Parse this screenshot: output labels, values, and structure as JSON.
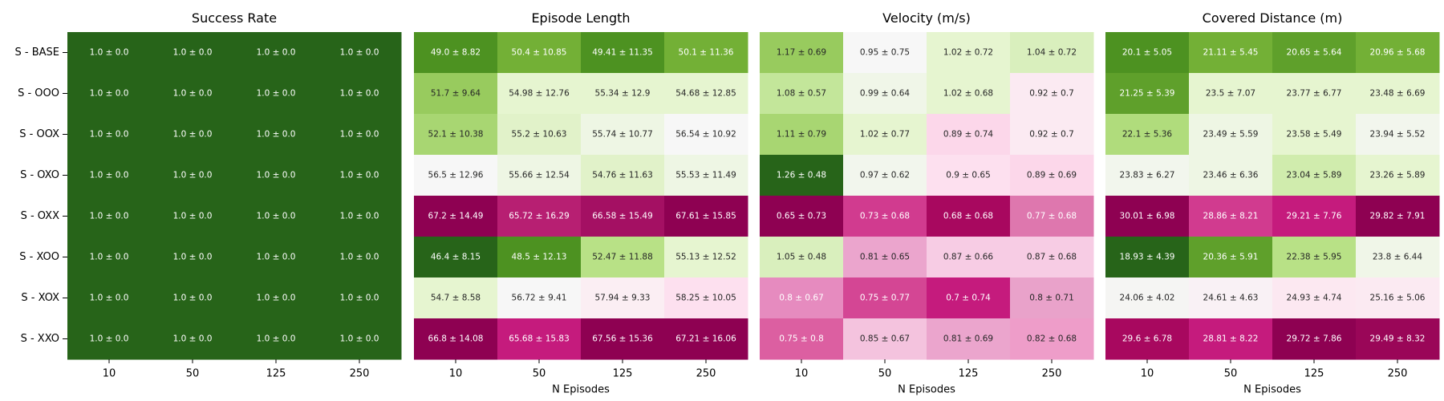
{
  "chart_data": {
    "type": "heatmap",
    "row_labels": [
      "S - BASE",
      "S - OOO",
      "S - OOX",
      "S - OXO",
      "S - OXX",
      "S - XOO",
      "S - XOX",
      "S - XXO"
    ],
    "col_labels": [
      "10",
      "50",
      "125",
      "250"
    ],
    "xlabel": "N Episodes",
    "colormap": "PiYG",
    "panels": [
      {
        "title": "Success Rate",
        "show_xlabel": false,
        "values": [
          [
            "1.0 ± 0.0",
            "1.0 ± 0.0",
            "1.0 ± 0.0",
            "1.0 ± 0.0"
          ],
          [
            "1.0 ± 0.0",
            "1.0 ± 0.0",
            "1.0 ± 0.0",
            "1.0 ± 0.0"
          ],
          [
            "1.0 ± 0.0",
            "1.0 ± 0.0",
            "1.0 ± 0.0",
            "1.0 ± 0.0"
          ],
          [
            "1.0 ± 0.0",
            "1.0 ± 0.0",
            "1.0 ± 0.0",
            "1.0 ± 0.0"
          ],
          [
            "1.0 ± 0.0",
            "1.0 ± 0.0",
            "1.0 ± 0.0",
            "1.0 ± 0.0"
          ],
          [
            "1.0 ± 0.0",
            "1.0 ± 0.0",
            "1.0 ± 0.0",
            "1.0 ± 0.0"
          ],
          [
            "1.0 ± 0.0",
            "1.0 ± 0.0",
            "1.0 ± 0.0",
            "1.0 ± 0.0"
          ],
          [
            "1.0 ± 0.0",
            "1.0 ± 0.0",
            "1.0 ± 0.0",
            "1.0 ± 0.0"
          ]
        ],
        "colors": [
          [
            "#276419",
            "#276419",
            "#276419",
            "#276419"
          ],
          [
            "#276419",
            "#276419",
            "#276419",
            "#276419"
          ],
          [
            "#276419",
            "#276419",
            "#276419",
            "#276419"
          ],
          [
            "#276419",
            "#276419",
            "#276419",
            "#276419"
          ],
          [
            "#276419",
            "#276419",
            "#276419",
            "#276419"
          ],
          [
            "#276419",
            "#276419",
            "#276419",
            "#276419"
          ],
          [
            "#276419",
            "#276419",
            "#276419",
            "#276419"
          ],
          [
            "#276419",
            "#276419",
            "#276419",
            "#276419"
          ]
        ],
        "text_colors": [
          [
            "#ffffff",
            "#ffffff",
            "#ffffff",
            "#ffffff"
          ],
          [
            "#ffffff",
            "#ffffff",
            "#ffffff",
            "#ffffff"
          ],
          [
            "#ffffff",
            "#ffffff",
            "#ffffff",
            "#ffffff"
          ],
          [
            "#ffffff",
            "#ffffff",
            "#ffffff",
            "#ffffff"
          ],
          [
            "#ffffff",
            "#ffffff",
            "#ffffff",
            "#ffffff"
          ],
          [
            "#ffffff",
            "#ffffff",
            "#ffffff",
            "#ffffff"
          ],
          [
            "#ffffff",
            "#ffffff",
            "#ffffff",
            "#ffffff"
          ],
          [
            "#ffffff",
            "#ffffff",
            "#ffffff",
            "#ffffff"
          ]
        ]
      },
      {
        "title": "Episode Length",
        "show_xlabel": true,
        "values": [
          [
            "49.0 ± 8.82",
            "50.4 ± 10.85",
            "49.41 ± 11.35",
            "50.1 ± 11.36"
          ],
          [
            "51.7 ± 9.64",
            "54.98 ± 12.76",
            "55.34 ± 12.9",
            "54.68 ± 12.85"
          ],
          [
            "52.1 ± 10.38",
            "55.2 ± 10.63",
            "55.74 ± 10.77",
            "56.54 ± 10.92"
          ],
          [
            "56.5 ± 12.96",
            "55.66 ± 12.54",
            "54.76 ± 11.63",
            "55.53 ± 11.49"
          ],
          [
            "67.2 ± 14.49",
            "65.72 ± 16.29",
            "66.58 ± 15.49",
            "67.61 ± 15.85"
          ],
          [
            "46.4 ± 8.15",
            "48.5 ± 12.13",
            "52.47 ± 11.88",
            "55.13 ± 12.52"
          ],
          [
            "54.7 ± 8.58",
            "56.72 ± 9.41",
            "57.94 ± 9.33",
            "58.25 ± 10.05"
          ],
          [
            "66.8 ± 14.08",
            "65.68 ± 15.83",
            "67.56 ± 15.36",
            "67.21 ± 16.06"
          ]
        ],
        "colors": [
          [
            "#4d9221",
            "#73b036",
            "#4d9221",
            "#73b036"
          ],
          [
            "#98cb5e",
            "#e6f5d0",
            "#e6f5d0",
            "#e6f5d0"
          ],
          [
            "#a8d672",
            "#e1f2c9",
            "#eef6e4",
            "#f7f7f7"
          ],
          [
            "#f7f7f7",
            "#eef6e4",
            "#e1f2c9",
            "#eef6e4"
          ],
          [
            "#8e0152",
            "#b71f72",
            "#a41063",
            "#8e0152"
          ],
          [
            "#276419",
            "#4d9221",
            "#b8e186",
            "#e6f5d0"
          ],
          [
            "#e6f5d0",
            "#f7f7f7",
            "#fbeef3",
            "#fde0ef"
          ],
          [
            "#8e0152",
            "#c51b7d",
            "#8e0152",
            "#8e0152"
          ]
        ],
        "text_colors": [
          [
            "#ffffff",
            "#ffffff",
            "#ffffff",
            "#ffffff"
          ],
          [
            "#262626",
            "#262626",
            "#262626",
            "#262626"
          ],
          [
            "#262626",
            "#262626",
            "#262626",
            "#262626"
          ],
          [
            "#262626",
            "#262626",
            "#262626",
            "#262626"
          ],
          [
            "#ffffff",
            "#ffffff",
            "#ffffff",
            "#ffffff"
          ],
          [
            "#ffffff",
            "#ffffff",
            "#262626",
            "#262626"
          ],
          [
            "#262626",
            "#262626",
            "#262626",
            "#262626"
          ],
          [
            "#ffffff",
            "#ffffff",
            "#ffffff",
            "#ffffff"
          ]
        ]
      },
      {
        "title": "Velocity (m/s)",
        "show_xlabel": true,
        "values": [
          [
            "1.17 ± 0.69",
            "0.95 ± 0.75",
            "1.02 ± 0.72",
            "1.04 ± 0.72"
          ],
          [
            "1.08 ± 0.57",
            "0.99 ± 0.64",
            "1.02 ± 0.68",
            "0.92 ± 0.7"
          ],
          [
            "1.11 ± 0.79",
            "1.02 ± 0.77",
            "0.89 ± 0.74",
            "0.92 ± 0.7"
          ],
          [
            "1.26 ± 0.48",
            "0.97 ± 0.62",
            "0.9 ± 0.65",
            "0.89 ± 0.69"
          ],
          [
            "0.65 ± 0.73",
            "0.73 ± 0.68",
            "0.68 ± 0.68",
            "0.77 ± 0.68"
          ],
          [
            "1.05 ± 0.48",
            "0.81 ± 0.65",
            "0.87 ± 0.66",
            "0.87 ± 0.68"
          ],
          [
            "0.8 ± 0.67",
            "0.75 ± 0.77",
            "0.7 ± 0.74",
            "0.8 ± 0.71"
          ],
          [
            "0.75 ± 0.8",
            "0.85 ± 0.67",
            "0.81 ± 0.69",
            "0.82 ± 0.68"
          ]
        ],
        "colors": [
          [
            "#98cb5e",
            "#f7f7f7",
            "#e6f5d0",
            "#d9efbd"
          ],
          [
            "#c3e69a",
            "#f0f6e8",
            "#e6f5d0",
            "#fbeaf2"
          ],
          [
            "#a8d672",
            "#e6f5d0",
            "#fcd7ea",
            "#fbeaf2"
          ],
          [
            "#276419",
            "#f2f6ed",
            "#fde0ef",
            "#fcd7ea"
          ],
          [
            "#8e0152",
            "#d13b8f",
            "#a8085f",
            "#de77ae"
          ],
          [
            "#d9efbd",
            "#eba5cd",
            "#f7cce4",
            "#f7cce4"
          ],
          [
            "#e68bbf",
            "#d44694",
            "#c51b7d",
            "#e9a2ca"
          ],
          [
            "#dc5fa1",
            "#f4c3de",
            "#eba5cd",
            "#ee9dc9"
          ]
        ],
        "text_colors": [
          [
            "#262626",
            "#262626",
            "#262626",
            "#262626"
          ],
          [
            "#262626",
            "#262626",
            "#262626",
            "#262626"
          ],
          [
            "#262626",
            "#262626",
            "#262626",
            "#262626"
          ],
          [
            "#ffffff",
            "#262626",
            "#262626",
            "#262626"
          ],
          [
            "#ffffff",
            "#ffffff",
            "#ffffff",
            "#ffffff"
          ],
          [
            "#262626",
            "#262626",
            "#262626",
            "#262626"
          ],
          [
            "#ffffff",
            "#ffffff",
            "#ffffff",
            "#262626"
          ],
          [
            "#ffffff",
            "#262626",
            "#262626",
            "#262626"
          ]
        ]
      },
      {
        "title": "Covered Distance (m)",
        "show_xlabel": true,
        "values": [
          [
            "20.1 ± 5.05",
            "21.11 ± 5.45",
            "20.65 ± 5.64",
            "20.96 ± 5.68"
          ],
          [
            "21.25 ± 5.39",
            "23.5 ± 7.07",
            "23.77 ± 6.77",
            "23.48 ± 6.69"
          ],
          [
            "22.1 ± 5.36",
            "23.49 ± 5.59",
            "23.58 ± 5.49",
            "23.94 ± 5.52"
          ],
          [
            "23.83 ± 6.27",
            "23.46 ± 6.36",
            "23.04 ± 5.89",
            "23.26 ± 5.89"
          ],
          [
            "30.01 ± 6.98",
            "28.86 ± 8.21",
            "29.21 ± 7.76",
            "29.82 ± 7.91"
          ],
          [
            "18.93 ± 4.39",
            "20.36 ± 5.91",
            "22.38 ± 5.95",
            "23.8 ± 6.44"
          ],
          [
            "24.06 ± 4.02",
            "24.61 ± 4.63",
            "24.93 ± 4.74",
            "25.16 ± 5.06"
          ],
          [
            "29.6 ± 6.78",
            "28.81 ± 8.22",
            "29.72 ± 7.86",
            "29.49 ± 8.32"
          ]
        ],
        "colors": [
          [
            "#4d9221",
            "#73b036",
            "#5fa02b",
            "#73b036"
          ],
          [
            "#5fa02b",
            "#e6f5d0",
            "#e6f5d0",
            "#e6f5d0"
          ],
          [
            "#b0dc7c",
            "#eef6e4",
            "#e6f5d0",
            "#f2f6ed"
          ],
          [
            "#f2f6ed",
            "#eef6e4",
            "#d0ecad",
            "#e6f5d0"
          ],
          [
            "#8e0152",
            "#d13b8f",
            "#c51b7d",
            "#8e0152"
          ],
          [
            "#276419",
            "#5fa02b",
            "#b8e186",
            "#f0f6e8"
          ],
          [
            "#f5f5f3",
            "#f9f1f5",
            "#fce8f1",
            "#fbeaf2"
          ],
          [
            "#a8085f",
            "#c51b7d",
            "#8e0152",
            "#9a0658"
          ]
        ],
        "text_colors": [
          [
            "#ffffff",
            "#ffffff",
            "#ffffff",
            "#ffffff"
          ],
          [
            "#ffffff",
            "#262626",
            "#262626",
            "#262626"
          ],
          [
            "#262626",
            "#262626",
            "#262626",
            "#262626"
          ],
          [
            "#262626",
            "#262626",
            "#262626",
            "#262626"
          ],
          [
            "#ffffff",
            "#ffffff",
            "#ffffff",
            "#ffffff"
          ],
          [
            "#ffffff",
            "#ffffff",
            "#262626",
            "#262626"
          ],
          [
            "#262626",
            "#262626",
            "#262626",
            "#262626"
          ],
          [
            "#ffffff",
            "#ffffff",
            "#ffffff",
            "#ffffff"
          ]
        ]
      }
    ]
  }
}
